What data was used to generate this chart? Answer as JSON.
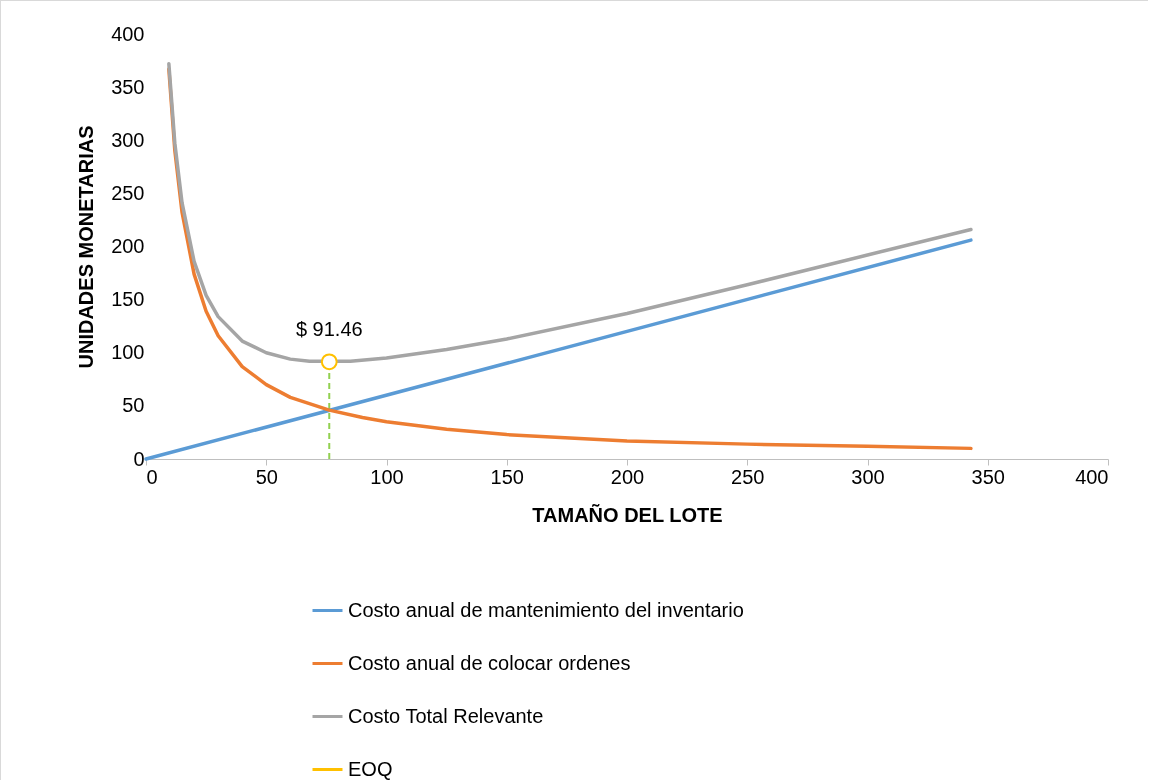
{
  "chart_data": {
    "type": "line",
    "xlabel": "TAMAÑO DEL LOTE",
    "ylabel": "UNIDADES MONETARIAS",
    "xlim": [
      0,
      400
    ],
    "xticks": [
      0,
      50,
      100,
      150,
      200,
      250,
      300,
      350,
      400
    ],
    "ylim": [
      0,
      400
    ],
    "yticks": [
      0,
      50,
      100,
      150,
      200,
      250,
      300,
      350,
      400
    ],
    "grid": false,
    "legend": "bottom",
    "line_style": "solid",
    "series": [
      {
        "name": "Costo anual de mantenimiento del inventario",
        "color": "#5b9bd5",
        "x": [
          0,
          343
        ],
        "values": [
          0,
          206
        ]
      },
      {
        "name": "Costo anual de colocar ordenes",
        "color": "#ed7d31",
        "x": [
          9.5,
          12,
          15,
          20,
          25,
          30,
          40,
          50,
          60,
          76.2,
          90,
          100,
          125,
          150,
          200,
          250,
          300,
          343
        ],
        "values": [
          367,
          290,
          232,
          174,
          139,
          116,
          87,
          70,
          58,
          46,
          39,
          35,
          28,
          23,
          17,
          14,
          12,
          10
        ]
      },
      {
        "name": "Costo Total Relevante",
        "color": "#a5a5a5",
        "x": [
          9.5,
          12,
          15,
          20,
          25,
          30,
          40,
          50,
          60,
          68,
          85,
          100,
          125,
          150,
          200,
          250,
          300,
          343
        ],
        "values": [
          372,
          297,
          241,
          186,
          154,
          134,
          111,
          100,
          94,
          92,
          92,
          95,
          103,
          113,
          137,
          164,
          192,
          216
        ]
      },
      {
        "name": "EOQ",
        "color": "#ffc000",
        "type": "scatter",
        "marker": "circle",
        "x": [
          76.2
        ],
        "values": [
          91.46
        ],
        "value_labels": [
          "$ 91.46"
        ]
      }
    ],
    "ref_lines": [
      {
        "axis": "x",
        "value": 76.2,
        "color": "#92d050",
        "line_style": "dashed"
      }
    ]
  }
}
